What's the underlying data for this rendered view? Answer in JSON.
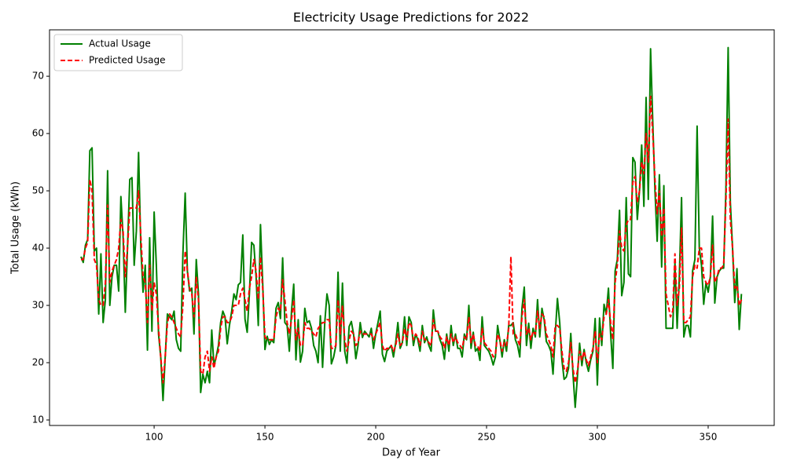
{
  "chart_data": {
    "type": "line",
    "title": "Electricity Usage Predictions for 2022",
    "x_label": "Day of Year",
    "y_label": "Total Usage (kWh)",
    "x": [
      67,
      68,
      69,
      70,
      71,
      72,
      73,
      74,
      75,
      76,
      77,
      78,
      79,
      80,
      81,
      82,
      83,
      84,
      85,
      86,
      87,
      88,
      89,
      90,
      91,
      92,
      93,
      94,
      95,
      96,
      97,
      98,
      99,
      100,
      101,
      102,
      103,
      104,
      105,
      106,
      107,
      108,
      109,
      110,
      111,
      112,
      113,
      114,
      115,
      116,
      117,
      118,
      119,
      120,
      121,
      122,
      123,
      124,
      125,
      126,
      127,
      128,
      129,
      130,
      131,
      132,
      133,
      134,
      135,
      136,
      137,
      138,
      139,
      140,
      141,
      142,
      143,
      144,
      145,
      146,
      147,
      148,
      149,
      150,
      151,
      152,
      153,
      154,
      155,
      156,
      157,
      158,
      159,
      160,
      161,
      162,
      163,
      164,
      165,
      166,
      167,
      168,
      169,
      170,
      171,
      172,
      173,
      174,
      175,
      176,
      177,
      178,
      179,
      180,
      181,
      182,
      183,
      184,
      185,
      186,
      187,
      188,
      189,
      190,
      191,
      192,
      193,
      194,
      195,
      196,
      197,
      198,
      199,
      200,
      201,
      202,
      203,
      204,
      205,
      206,
      207,
      208,
      209,
      210,
      211,
      212,
      213,
      214,
      215,
      216,
      217,
      218,
      219,
      220,
      221,
      222,
      223,
      224,
      225,
      226,
      227,
      228,
      229,
      230,
      231,
      232,
      233,
      234,
      235,
      236,
      237,
      238,
      239,
      240,
      241,
      242,
      243,
      244,
      245,
      246,
      247,
      248,
      249,
      250,
      251,
      252,
      253,
      254,
      255,
      256,
      257,
      258,
      259,
      260,
      261,
      262,
      263,
      264,
      265,
      266,
      267,
      268,
      269,
      270,
      271,
      272,
      273,
      274,
      275,
      276,
      277,
      278,
      279,
      280,
      281,
      282,
      283,
      284,
      285,
      286,
      287,
      288,
      289,
      290,
      291,
      292,
      293,
      294,
      295,
      296,
      297,
      298,
      299,
      300,
      301,
      302,
      303,
      304,
      305,
      306,
      307,
      308,
      309,
      310,
      311,
      312,
      313,
      314,
      315,
      316,
      317,
      318,
      319,
      320,
      321,
      322,
      323,
      324,
      325,
      326,
      327,
      328,
      329,
      330,
      331,
      332,
      333,
      334,
      335,
      336,
      337,
      338,
      339,
      340,
      341,
      342,
      343,
      344,
      345,
      346,
      347,
      348,
      349,
      350,
      351,
      352,
      353,
      354,
      355,
      356,
      357,
      358,
      359,
      360,
      361,
      362,
      363,
      364,
      365
    ],
    "series": [
      {
        "name": "Actual Usage",
        "color": "#008000",
        "linestyle": "solid",
        "values": [
          38.5,
          37.5,
          40.5,
          41.5,
          57,
          57.5,
          39.5,
          40,
          28.5,
          39,
          27,
          31,
          53.5,
          30,
          35,
          37,
          37,
          32.5,
          49,
          42,
          28.8,
          40,
          52,
          52.3,
          37,
          43,
          56.7,
          40,
          32.3,
          37,
          22.2,
          41.8,
          25.5,
          46.3,
          37,
          25,
          21,
          13.4,
          21,
          28.5,
          28,
          27.5,
          29,
          24,
          22.5,
          22,
          39,
          49.6,
          36,
          32.5,
          33,
          25,
          38,
          32,
          14.8,
          18,
          16.5,
          18.5,
          16.5,
          25.7,
          19.5,
          21,
          23,
          27,
          29,
          28,
          23.3,
          26.5,
          29,
          32,
          31,
          33.6,
          34,
          42.3,
          27.6,
          25.3,
          32,
          41,
          40.5,
          35,
          26.5,
          44.1,
          34,
          22.3,
          24.6,
          23.2,
          24,
          23.5,
          29.5,
          30.5,
          27.7,
          38.3,
          27,
          26.5,
          22,
          29,
          33.7,
          20.5,
          27.5,
          20.1,
          22,
          29.5,
          27,
          27.3,
          26,
          23,
          22,
          20,
          28.2,
          19.2,
          27,
          32,
          30,
          19.8,
          21,
          23,
          35.8,
          22,
          33.9,
          22,
          19.9,
          26.3,
          27.2,
          25,
          20.7,
          23,
          27,
          24.4,
          25.5,
          25,
          24.5,
          26,
          22.5,
          25,
          27,
          29,
          21.5,
          20.2,
          22,
          22.5,
          23,
          21,
          23.5,
          27,
          22.5,
          23.5,
          28,
          23,
          28,
          27,
          23,
          25,
          24,
          22,
          26.5,
          23.5,
          24.5,
          23,
          22,
          29.2,
          25.5,
          25.5,
          24,
          23,
          20.6,
          25,
          22,
          26.5,
          23,
          25,
          22.5,
          22.5,
          21,
          25,
          24,
          30,
          22.5,
          25.3,
          22,
          22.5,
          20.4,
          28,
          23,
          22.5,
          22,
          21,
          19.6,
          21,
          26.5,
          24,
          21,
          24,
          22,
          26.5,
          26.5,
          27,
          24,
          23,
          21,
          29.5,
          33.2,
          23,
          26.9,
          22.5,
          26,
          24.5,
          31,
          24.5,
          29.5,
          27.5,
          23.7,
          23,
          22,
          18,
          25,
          31.2,
          27,
          20.5,
          17.1,
          17.5,
          19,
          25.1,
          18,
          12.2,
          17.5,
          23.4,
          19.5,
          22.3,
          20,
          18.5,
          20.5,
          22,
          27.7,
          16.1,
          27.8,
          23,
          30.2,
          28.5,
          33,
          25,
          19,
          36,
          38,
          46.6,
          31.7,
          34,
          48.8,
          35.5,
          35,
          55.8,
          55,
          45,
          50,
          58,
          47.3,
          66.3,
          48.5,
          74.8,
          62,
          50,
          41.2,
          52.8,
          36.7,
          50.9,
          26,
          26,
          26,
          26,
          37.5,
          26,
          35,
          48.8,
          24.5,
          26.5,
          26.5,
          24.5,
          36,
          38,
          61.3,
          40,
          37,
          30.2,
          34,
          32.3,
          35,
          45.6,
          30.4,
          35,
          36,
          36.5,
          36.5,
          50,
          75,
          48,
          40,
          30.5,
          36.4,
          25.8,
          32
        ]
      },
      {
        "name": "Predicted Usage",
        "color": "#ff0000",
        "linestyle": "dashed",
        "values": [
          38,
          38,
          40,
          41,
          52,
          50,
          38,
          37,
          31,
          30,
          30,
          34,
          47.5,
          34,
          36,
          37,
          38,
          40,
          45,
          43,
          35,
          40,
          47,
          47,
          47,
          47,
          50,
          42,
          35,
          34,
          27,
          37,
          29,
          34,
          32,
          26,
          21,
          16.5,
          21,
          27,
          28.5,
          28,
          27,
          26,
          25,
          24.5,
          30,
          39.5,
          36,
          33,
          32,
          28,
          35,
          31,
          18.5,
          18,
          21,
          22,
          18.5,
          21,
          19,
          21,
          22,
          26,
          28,
          28,
          27,
          27,
          28,
          30,
          30,
          30,
          32,
          33,
          31,
          29,
          33,
          35,
          38,
          36,
          31,
          38.5,
          33,
          24.5,
          24,
          24,
          24,
          24,
          28,
          29.5,
          29,
          34.5,
          31,
          27,
          25,
          27.5,
          31,
          24,
          26,
          23,
          23,
          27,
          26,
          26,
          25.5,
          25,
          24.5,
          26,
          26.5,
          27,
          27,
          27.5,
          27.5,
          22.5,
          22.5,
          23,
          31,
          25,
          30,
          24,
          22,
          24,
          25.5,
          25,
          23,
          23.5,
          25.5,
          25,
          25,
          25,
          25,
          25,
          24,
          25,
          26,
          27,
          23,
          22,
          22.5,
          22.5,
          23,
          22,
          23,
          25,
          23,
          23.5,
          26,
          24,
          27,
          26.5,
          24,
          25,
          24.5,
          23,
          25.5,
          24,
          24,
          23.5,
          23,
          27.5,
          25.5,
          25.5,
          24.5,
          24,
          22.5,
          24.5,
          23,
          25,
          23.5,
          24.5,
          23.5,
          23,
          22.5,
          24.5,
          24,
          28,
          23.5,
          25,
          23,
          23,
          22,
          26,
          23.5,
          23,
          22.5,
          22,
          21,
          21.5,
          25,
          24,
          22,
          23.5,
          23,
          26,
          38.5,
          25,
          25,
          24,
          23,
          28,
          31,
          25,
          26,
          24,
          25.5,
          25,
          29,
          26,
          28.5,
          28,
          25,
          24,
          23,
          21,
          26.5,
          26.5,
          26,
          22,
          19,
          18.5,
          20,
          23.5,
          19,
          16.5,
          18.5,
          22,
          20.5,
          22,
          20.5,
          19.5,
          21,
          22.5,
          25.5,
          20,
          25,
          24,
          28,
          28.5,
          31,
          27,
          24,
          34,
          37,
          43,
          40,
          39.5,
          44,
          45,
          45,
          51.5,
          52.5,
          48,
          50,
          55,
          53,
          60,
          55,
          66.5,
          60,
          52,
          46,
          50,
          42,
          47,
          32,
          30,
          28,
          29,
          39,
          30,
          33,
          43.5,
          27,
          27,
          27.5,
          28,
          35,
          37,
          36.5,
          40,
          40,
          35,
          34,
          33.5,
          35,
          40.5,
          34,
          35,
          36.5,
          36.5,
          37,
          48,
          62.5,
          45,
          40,
          33,
          33.5,
          30,
          31
        ]
      }
    ],
    "xlim": [
      52.8,
      379.8
    ],
    "ylim": [
      9.04,
      78.1
    ],
    "xticks": [
      100,
      150,
      200,
      250,
      300,
      350
    ],
    "yticks": [
      10,
      20,
      30,
      40,
      50,
      60,
      70
    ],
    "grid": false,
    "legend": "upper left"
  }
}
